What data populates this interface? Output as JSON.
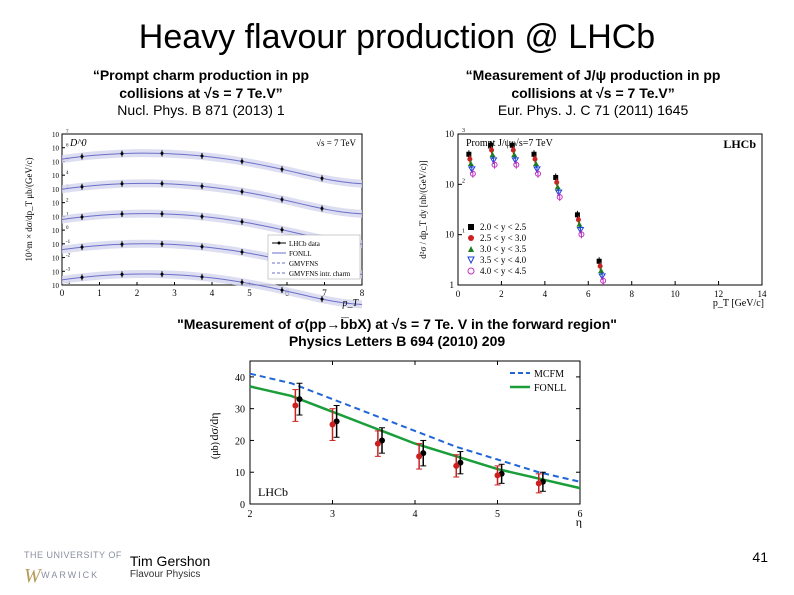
{
  "title": "Heavy flavour production @ LHCb",
  "left_citation": {
    "line1": "“Prompt charm production in pp",
    "line2": "collisions at √s = 7 Te.V”",
    "line3": "Nucl. Phys. B 871 (2013) 1"
  },
  "right_citation": {
    "line1": "“Measurement of J/ψ production in pp",
    "line2": "collisions at √s = 7 Te.V”",
    "line3": "Eur. Phys. J. C 71 (2011) 1645"
  },
  "middle_citation": {
    "line1": "\"Measurement of σ(pp→b̅bX) at √s = 7 Te. V in the forward region\"",
    "line2": "Physics Letters B 694 (2010) 209"
  },
  "author": "Tim Gershon",
  "author_sub": "Flavour Physics",
  "logo_top": "THE UNIVERSITY OF",
  "logo_main": "WARWICK",
  "page_number": "41",
  "left_chart": {
    "type": "line",
    "xlabel": "p_T",
    "ylabel": "10^m × dσ/dp_T   μb/(GeV/c)",
    "header_left": "D^0",
    "header_right": "√s = 7 TeV",
    "xlim": [
      0,
      8
    ],
    "xticks": [
      0,
      1,
      2,
      3,
      4,
      5,
      6,
      7,
      8
    ],
    "ylim_log": [
      0.0001,
      10000000.0
    ],
    "yticks_exp": [
      -4,
      -3,
      -2,
      -1,
      0,
      1,
      2,
      3,
      4,
      5,
      6,
      7
    ],
    "legend": [
      "LHCb data",
      "FONLL",
      "GMVFNS",
      "GMVFNS intr. charm"
    ],
    "curve_color": "#6b6fc9",
    "band_fill": "#d4d6ee",
    "marker_color": "#000000",
    "n_curves": 5,
    "axis_color": "#000000",
    "background_color": "#ffffff",
    "fontsize_axis": 9,
    "fontsize_legend": 8
  },
  "right_chart": {
    "type": "scatter",
    "xlabel": "p_T [GeV/c]",
    "ylabel": "d²σ / dp_T dy  [nb/(GeV/c)]",
    "header_left": "Prompt J/ψ  √s=7 TeV",
    "header_right": "LHCb",
    "xlim": [
      0,
      14
    ],
    "xticks": [
      0,
      2,
      4,
      6,
      8,
      10,
      12,
      14
    ],
    "ylim_log": [
      1,
      1000
    ],
    "yticks": [
      1,
      10,
      100,
      1000
    ],
    "legend": [
      {
        "label": "2.0 < y < 2.5",
        "color": "#000000",
        "marker": "square-filled"
      },
      {
        "label": "2.5 < y < 3.0",
        "color": "#cc2222",
        "marker": "circle-filled"
      },
      {
        "label": "3.0 < y < 3.5",
        "color": "#1d7f1d",
        "marker": "triangle-filled"
      },
      {
        "label": "3.5 < y < 4.0",
        "color": "#1a3fd6",
        "marker": "triangle-down"
      },
      {
        "label": "4.0 < y < 4.5",
        "color": "#c030c0",
        "marker": "circle-open"
      }
    ],
    "axis_color": "#000000",
    "background_color": "#ffffff",
    "fontsize_axis": 9,
    "fontsize_legend": 9
  },
  "bottom_chart": {
    "type": "line+scatter",
    "xlabel": "η",
    "ylabel": "dσ/dη",
    "ylabel_unit": "(μb)",
    "xlim": [
      2,
      6
    ],
    "xticks": [
      2,
      3,
      4,
      5,
      6
    ],
    "ylim": [
      0,
      45
    ],
    "yticks": [
      0,
      10,
      20,
      30,
      40
    ],
    "annotation": "LHCb",
    "series": [
      {
        "label": "MCFM",
        "color": "#1f66d6",
        "style": "dashed",
        "width": 2,
        "points": [
          [
            2,
            41
          ],
          [
            2.5,
            38
          ],
          [
            3,
            33
          ],
          [
            3.5,
            28
          ],
          [
            4,
            23
          ],
          [
            4.5,
            18
          ],
          [
            5,
            14
          ],
          [
            5.5,
            10
          ],
          [
            6,
            7
          ]
        ]
      },
      {
        "label": "FONLL",
        "color": "#1a9e3a",
        "style": "solid",
        "width": 2.5,
        "points": [
          [
            2,
            37
          ],
          [
            2.5,
            34
          ],
          [
            3,
            29
          ],
          [
            3.5,
            24
          ],
          [
            4,
            19
          ],
          [
            4.5,
            15
          ],
          [
            5,
            11
          ],
          [
            5.5,
            8
          ],
          [
            6,
            5
          ]
        ]
      }
    ],
    "data_black": {
      "color": "#000000",
      "points": [
        [
          2.6,
          33,
          5
        ],
        [
          3.05,
          26,
          5
        ],
        [
          3.6,
          20,
          4
        ],
        [
          4.1,
          16,
          4
        ],
        [
          4.55,
          13,
          3.5
        ],
        [
          5.05,
          9.5,
          3
        ],
        [
          5.55,
          7,
          3
        ]
      ]
    },
    "data_red": {
      "color": "#cc1f1f",
      "points": [
        [
          2.55,
          31,
          5
        ],
        [
          3.0,
          25,
          5
        ],
        [
          3.55,
          19,
          4
        ],
        [
          4.05,
          15,
          4
        ],
        [
          4.5,
          12,
          3.5
        ],
        [
          5.0,
          9,
          3
        ],
        [
          5.5,
          6.5,
          3
        ]
      ]
    },
    "axis_color": "#000000",
    "background_color": "#ffffff",
    "fontsize_axis": 10,
    "fontsize_legend": 10
  }
}
